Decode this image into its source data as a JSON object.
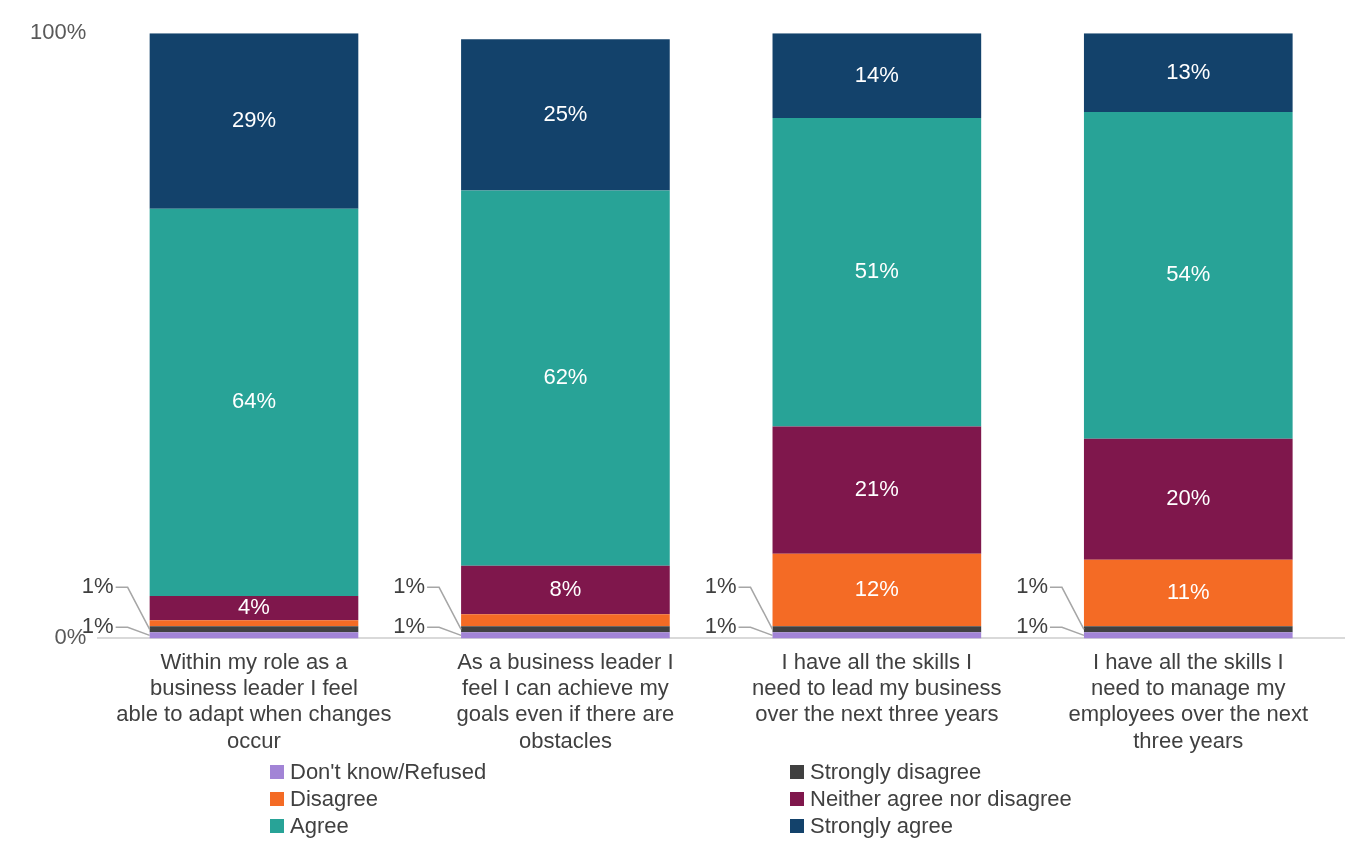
{
  "chart_data": {
    "type": "bar",
    "stacked": true,
    "categories": [
      "Within my role as a business leader I feel able to adapt when changes occur",
      "As a business leader I feel I can achieve my goals even if there are obstacles",
      "I have all the skills I need to lead my business over the next three years",
      "I have all the skills I need to manage my employees over the next three years"
    ],
    "series": [
      {
        "name": "Don't know/Refused",
        "color": "#a284d6",
        "values": [
          1,
          1,
          1,
          1
        ],
        "value_labels": [
          "1%",
          "1%",
          "1%",
          "1%"
        ]
      },
      {
        "name": "Strongly disagree",
        "color": "#404040",
        "values": [
          1,
          1,
          1,
          1
        ],
        "value_labels": [
          "1%",
          "1%",
          "1%",
          "1%"
        ]
      },
      {
        "name": "Disagree",
        "color": "#f46b25",
        "values": [
          1,
          2,
          12,
          11
        ],
        "value_labels": [
          null,
          null,
          "12%",
          "11%"
        ]
      },
      {
        "name": "Neither agree nor disagree",
        "color": "#7f174c",
        "values": [
          4,
          8,
          21,
          20
        ],
        "value_labels": [
          "4%",
          "8%",
          "21%",
          "20%"
        ]
      },
      {
        "name": "Agree",
        "color": "#28a397",
        "values": [
          64,
          62,
          51,
          54
        ],
        "value_labels": [
          "64%",
          "62%",
          "51%",
          "54%"
        ]
      },
      {
        "name": "Strongly agree",
        "color": "#13426b",
        "values": [
          29,
          25,
          14,
          13
        ],
        "value_labels": [
          "29%",
          "25%",
          "14%",
          "13%"
        ]
      }
    ],
    "ylim": [
      0,
      100
    ],
    "yticks": [
      {
        "value": 0,
        "label": "0%"
      },
      {
        "value": 100,
        "label": "100%"
      }
    ],
    "legend": "bottom"
  }
}
